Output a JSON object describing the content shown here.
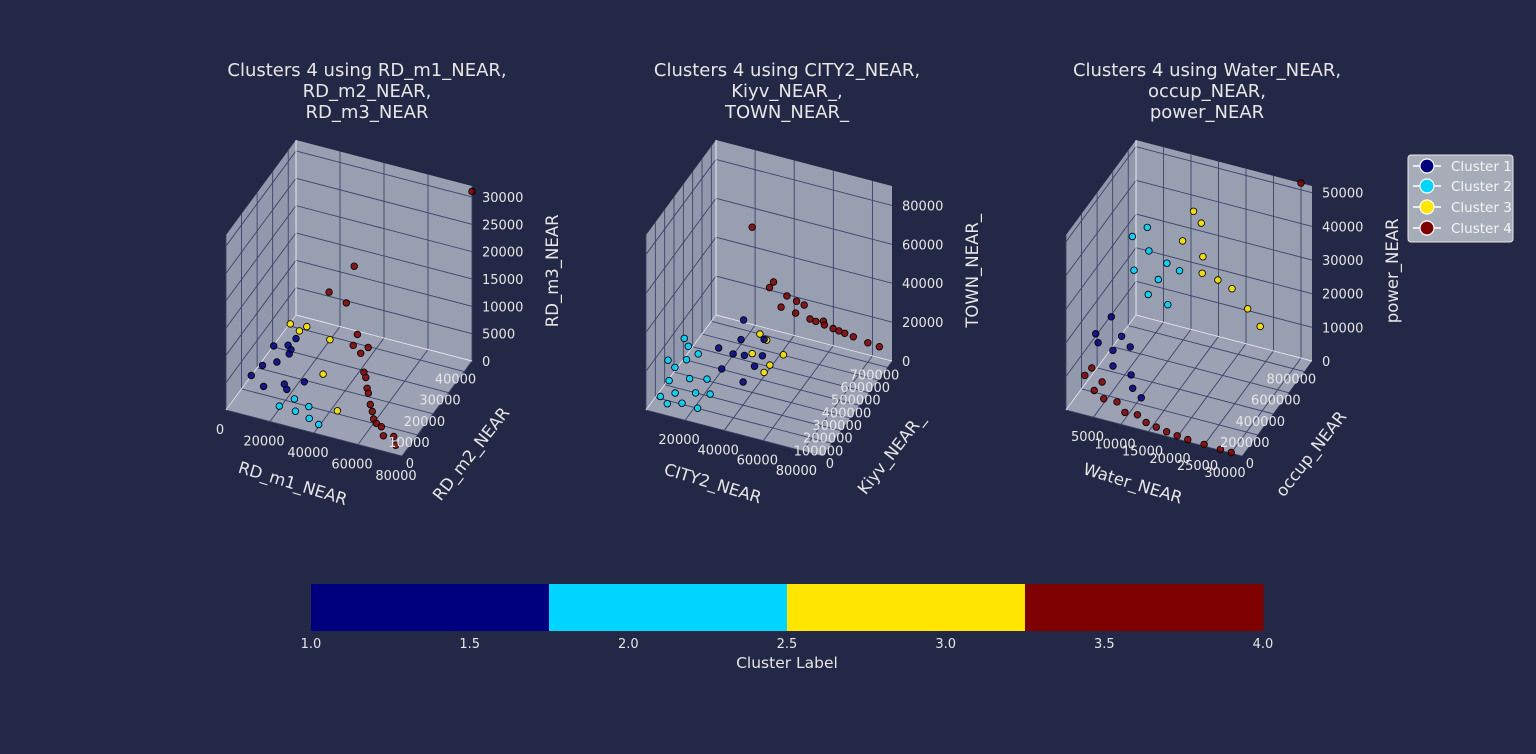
{
  "figure": {
    "background": "#222845",
    "pane_color": "#a3a9bb",
    "grid_color": "#3c4368",
    "text_color": "#e6e6e6"
  },
  "legend": {
    "location": "top-right",
    "items": [
      {
        "label": "Cluster 1",
        "color": "#00007f"
      },
      {
        "label": "Cluster 2",
        "color": "#00d5ff"
      },
      {
        "label": "Cluster 3",
        "color": "#ffe500"
      },
      {
        "label": "Cluster 4",
        "color": "#7f0000"
      }
    ]
  },
  "colorbar": {
    "label": "Cluster Label",
    "ticks": [
      "1.0",
      "1.5",
      "2.0",
      "2.5",
      "3.0",
      "3.5",
      "4.0"
    ],
    "range": [
      1.0,
      4.0
    ],
    "segments": [
      "#00007f",
      "#00d5ff",
      "#ffe500",
      "#7f0000"
    ]
  },
  "chart_data": [
    {
      "type": "scatter",
      "projection": "3d",
      "title": [
        "Clusters 4 using RD_m1_NEAR,",
        "RD_m2_NEAR,",
        "RD_m3_NEAR"
      ],
      "xlabel": "RD_m1_NEAR",
      "ylabel": "RD_m2_NEAR",
      "zlabel": "RD_m3_NEAR",
      "xticks": [
        "0",
        "20000",
        "40000",
        "60000",
        "80000"
      ],
      "yticks": [
        "0",
        "10000",
        "20000",
        "30000",
        "40000"
      ],
      "zticks": [
        "0",
        "5000",
        "10000",
        "15000",
        "20000",
        "25000",
        "30000"
      ],
      "xlim": [
        0,
        80000
      ],
      "ylim": [
        0,
        45000
      ],
      "zlim": [
        0,
        32000
      ],
      "series": [
        {
          "name": "Cluster 1",
          "color": "#00007f",
          "points": [
            [
              6000,
              15000,
              3000
            ],
            [
              9000,
              20000,
              2000
            ],
            [
              14000,
              22000,
              4000
            ],
            [
              4000,
              25000,
              2500
            ],
            [
              18000,
              12000,
              2000
            ],
            [
              10000,
              10000,
              1500
            ],
            [
              22000,
              8000,
              3000
            ],
            [
              7000,
              30000,
              1000
            ],
            [
              16000,
              18000,
              5000
            ],
            [
              25000,
              15000,
              2000
            ],
            [
              3000,
              12000,
              2000
            ],
            [
              12000,
              28000,
              3500
            ]
          ]
        },
        {
          "name": "Cluster 2",
          "color": "#00d5ff",
          "points": [
            [
              20000,
              6000,
              500
            ],
            [
              28000,
              5000,
              800
            ],
            [
              35000,
              4000,
              600
            ],
            [
              40000,
              3000,
              400
            ],
            [
              32000,
              8000,
              900
            ],
            [
              24000,
              10000,
              700
            ]
          ]
        },
        {
          "name": "Cluster 3",
          "color": "#ffe500",
          "points": [
            [
              8000,
              30000,
              5000
            ],
            [
              15000,
              26000,
              6000
            ],
            [
              30000,
              20000,
              2000
            ],
            [
              45000,
              8000,
              1500
            ],
            [
              12000,
              35000,
              3000
            ],
            [
              26000,
              30000,
              4000
            ]
          ]
        },
        {
          "name": "Cluster 4",
          "color": "#7f0000",
          "points": [
            [
              30000,
              40000,
              14000
            ],
            [
              20000,
              38000,
              9000
            ],
            [
              25000,
              42000,
              6000
            ],
            [
              40000,
              30000,
              3000
            ],
            [
              50000,
              20000,
              1500
            ],
            [
              60000,
              10000,
              800
            ],
            [
              68000,
              5000,
              500
            ],
            [
              75000,
              3000,
              300
            ],
            [
              55000,
              15000,
              1000
            ],
            [
              45000,
              25000,
              2000
            ],
            [
              35000,
              35000,
              4000
            ],
            [
              65000,
              8000,
              700
            ],
            [
              72000,
              6000,
              400
            ],
            [
              58000,
              12000,
              1200
            ],
            [
              48000,
              22000,
              2500
            ],
            [
              38000,
              28000,
              5000
            ],
            [
              80000,
              45000,
              31000
            ],
            [
              52000,
              18000,
              1600
            ],
            [
              42000,
              32000,
              3500
            ],
            [
              62000,
              9000,
              600
            ]
          ]
        }
      ]
    },
    {
      "type": "scatter",
      "projection": "3d",
      "title": [
        "Clusters 4 using CITY2_NEAR,",
        "Kiyv_NEAR_,",
        "TOWN_NEAR_"
      ],
      "xlabel": "CITY2_NEAR",
      "ylabel": "Kiyv_NEAR_",
      "zlabel": "TOWN_NEAR_",
      "xticks": [
        "20000",
        "40000",
        "60000",
        "80000"
      ],
      "yticks": [
        "0",
        "100000",
        "200000",
        "300000",
        "400000",
        "500000",
        "600000",
        "700000"
      ],
      "zticks": [
        "0",
        "20000",
        "40000",
        "60000",
        "80000"
      ],
      "xlim": [
        0,
        90000
      ],
      "ylim": [
        0,
        750000
      ],
      "zlim": [
        0,
        90000
      ],
      "series": [
        {
          "name": "Cluster 1",
          "color": "#00007f",
          "points": [
            [
              30000,
              150000,
              30000
            ],
            [
              35000,
              200000,
              25000
            ],
            [
              40000,
              180000,
              35000
            ],
            [
              45000,
              220000,
              20000
            ],
            [
              38000,
              250000,
              40000
            ],
            [
              42000,
              160000,
              15000
            ],
            [
              50000,
              200000,
              28000
            ],
            [
              33000,
              120000,
              22000
            ],
            [
              48000,
              260000,
              32000
            ],
            [
              36000,
              300000,
              18000
            ]
          ]
        },
        {
          "name": "Cluster 2",
          "color": "#00d5ff",
          "points": [
            [
              5000,
              50000,
              5000
            ],
            [
              8000,
              80000,
              12000
            ],
            [
              10000,
              100000,
              18000
            ],
            [
              12000,
              60000,
              8000
            ],
            [
              15000,
              120000,
              22000
            ],
            [
              18000,
              90000,
              15000
            ],
            [
              20000,
              140000,
              25000
            ],
            [
              6000,
              110000,
              20000
            ],
            [
              22000,
              70000,
              10000
            ],
            [
              25000,
              130000,
              14000
            ],
            [
              14000,
              160000,
              26000
            ],
            [
              9000,
              40000,
              3000
            ],
            [
              17000,
              30000,
              6000
            ],
            [
              28000,
              100000,
              9000
            ],
            [
              11000,
              180000,
              28000
            ],
            [
              24000,
              50000,
              4000
            ]
          ]
        },
        {
          "name": "Cluster 3",
          "color": "#ffe500",
          "points": [
            [
              40000,
              300000,
              20000
            ],
            [
              45000,
              350000,
              25000
            ],
            [
              50000,
              280000,
              18000
            ],
            [
              55000,
              320000,
              22000
            ],
            [
              48000,
              260000,
              15000
            ],
            [
              42000,
              340000,
              28000
            ]
          ]
        },
        {
          "name": "Cluster 4",
          "color": "#7f0000",
          "points": [
            [
              50000,
              400000,
              40000
            ],
            [
              55000,
              450000,
              35000
            ],
            [
              60000,
              500000,
              30000
            ],
            [
              65000,
              550000,
              25000
            ],
            [
              70000,
              600000,
              20000
            ],
            [
              75000,
              650000,
              15000
            ],
            [
              45000,
              380000,
              50000
            ],
            [
              52000,
              420000,
              45000
            ],
            [
              58000,
              480000,
              38000
            ],
            [
              62000,
              520000,
              28000
            ],
            [
              68000,
              580000,
              22000
            ],
            [
              80000,
              700000,
              10000
            ],
            [
              85000,
              720000,
              8000
            ],
            [
              48000,
              360000,
              55000
            ],
            [
              56000,
              440000,
              42000
            ],
            [
              64000,
              560000,
              26000
            ],
            [
              72000,
              620000,
              18000
            ],
            [
              40000,
              300000,
              85000
            ]
          ]
        }
      ]
    },
    {
      "type": "scatter",
      "projection": "3d",
      "title": [
        "Clusters 4 using Water_NEAR,",
        "occup_NEAR,",
        "power_NEAR"
      ],
      "xlabel": "Water_NEAR",
      "ylabel": "occup_NEAR",
      "zlabel": "power_NEAR",
      "xticks": [
        "5000",
        "10000",
        "15000",
        "20000",
        "25000",
        "30000"
      ],
      "yticks": [
        "0",
        "200000",
        "400000",
        "600000",
        "800000"
      ],
      "zticks": [
        "0",
        "10000",
        "20000",
        "30000",
        "40000",
        "50000"
      ],
      "xlim": [
        0,
        32000
      ],
      "ylim": [
        0,
        900000
      ],
      "zlim": [
        0,
        52000
      ],
      "series": [
        {
          "name": "Cluster 1",
          "color": "#00007f",
          "points": [
            [
              3000,
              200000,
              15000
            ],
            [
              5000,
              250000,
              12000
            ],
            [
              7000,
              220000,
              18000
            ],
            [
              4000,
              300000,
              20000
            ],
            [
              6000,
              180000,
              10000
            ],
            [
              8000,
              260000,
              14000
            ],
            [
              9000,
              200000,
              8000
            ],
            [
              2000,
              240000,
              16000
            ],
            [
              10000,
              150000,
              6000
            ],
            [
              12000,
              120000,
              5000
            ]
          ]
        },
        {
          "name": "Cluster 2",
          "color": "#00d5ff",
          "points": [
            [
              6000,
              450000,
              30000
            ],
            [
              8000,
              500000,
              35000
            ],
            [
              10000,
              480000,
              28000
            ],
            [
              7000,
              550000,
              40000
            ],
            [
              9000,
              420000,
              25000
            ],
            [
              11000,
              520000,
              32000
            ],
            [
              12000,
              460000,
              22000
            ],
            [
              5000,
              500000,
              38000
            ],
            [
              13000,
              540000,
              30000
            ]
          ]
        },
        {
          "name": "Cluster 3",
          "color": "#ffe500",
          "points": [
            [
              12000,
              650000,
              35000
            ],
            [
              15000,
              700000,
              30000
            ],
            [
              18000,
              680000,
              25000
            ],
            [
              14000,
              750000,
              38000
            ],
            [
              16000,
              620000,
              28000
            ],
            [
              20000,
              720000,
              22000
            ],
            [
              22000,
              780000,
              15000
            ],
            [
              24000,
              800000,
              10000
            ],
            [
              13000,
              720000,
              42000
            ]
          ]
        },
        {
          "name": "Cluster 4",
          "color": "#7f0000",
          "points": [
            [
              2000,
              100000,
              8000
            ],
            [
              4000,
              80000,
              5000
            ],
            [
              6000,
              60000,
              4000
            ],
            [
              8000,
              90000,
              3000
            ],
            [
              10000,
              50000,
              2000
            ],
            [
              12000,
              70000,
              1500
            ],
            [
              14000,
              40000,
              1000
            ],
            [
              16000,
              30000,
              800
            ],
            [
              18000,
              20000,
              600
            ],
            [
              20000,
              15000,
              400
            ],
            [
              22000,
              10000,
              300
            ],
            [
              25000,
              8000,
              200
            ],
            [
              28000,
              5000,
              100
            ],
            [
              30000,
              3000,
              100
            ],
            [
              3000,
              120000,
              10000
            ],
            [
              5000,
              110000,
              7000
            ],
            [
              30000,
              900000,
              52000
            ]
          ]
        }
      ]
    }
  ]
}
